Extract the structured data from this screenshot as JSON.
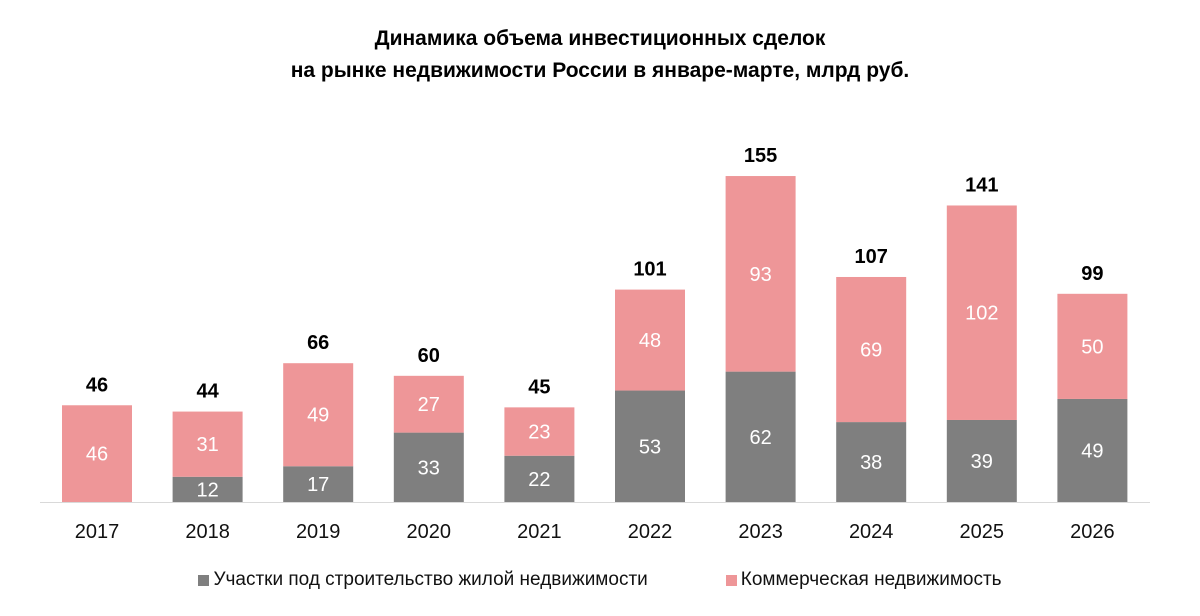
{
  "chart_data": {
    "type": "stacked-bar",
    "title_lines": [
      "Динамика объема инвестиционных сделок",
      "на рынке недвижимости России в январе-марте, млрд руб."
    ],
    "categories": [
      "2017",
      "2018",
      "2019",
      "2020",
      "2021",
      "2022",
      "2023",
      "2024",
      "2025",
      "2026"
    ],
    "series": [
      {
        "name": "Участки под строительство жилой недвижимости",
        "color": "#7f7f7f",
        "values": [
          0,
          12,
          17,
          33,
          22,
          53,
          62,
          38,
          39,
          49
        ]
      },
      {
        "name": "Коммерческая недвижимость",
        "color": "#ee9698",
        "values": [
          46,
          31,
          49,
          27,
          23,
          48,
          93,
          69,
          102,
          50
        ]
      }
    ],
    "totals": [
      46,
      44,
      66,
      60,
      45,
      101,
      155,
      107,
      141,
      99
    ],
    "ylim": [
      0,
      160
    ],
    "grid": false,
    "legend_position": "bottom"
  }
}
